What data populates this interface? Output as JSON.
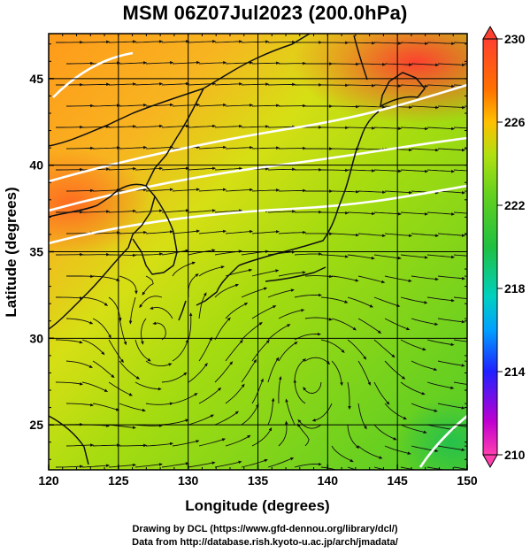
{
  "title": "MSM 06Z07Jul2023 (200.0hPa)",
  "map": {
    "xlabel": "Longitude (degrees)",
    "ylabel": "Latitude  (degrees)",
    "xticks": [
      "120",
      "125",
      "130",
      "135",
      "140",
      "145",
      "150"
    ],
    "yticks": [
      "25",
      "30",
      "35",
      "40",
      "45"
    ],
    "xlim": [
      120,
      150
    ],
    "ylim": [
      22.4,
      47.6
    ]
  },
  "colorbar": {
    "ticks": [
      "230",
      "226",
      "222",
      "218",
      "214",
      "210"
    ],
    "range": [
      210,
      230
    ],
    "colors": [
      "#ff40b0",
      "#c000d0",
      "#2020ff",
      "#00a0ff",
      "#00d0c0",
      "#20c040",
      "#60d020",
      "#b0e010",
      "#ffc000",
      "#ff7000",
      "#ff4030"
    ]
  },
  "credits": {
    "line1": "Drawing by DCL (https://www.gfd-dennou.org/library/dcl/)",
    "line2": "Data from http://database.rish.kyoto-u.ac.jp/arch/jmadata/"
  }
}
